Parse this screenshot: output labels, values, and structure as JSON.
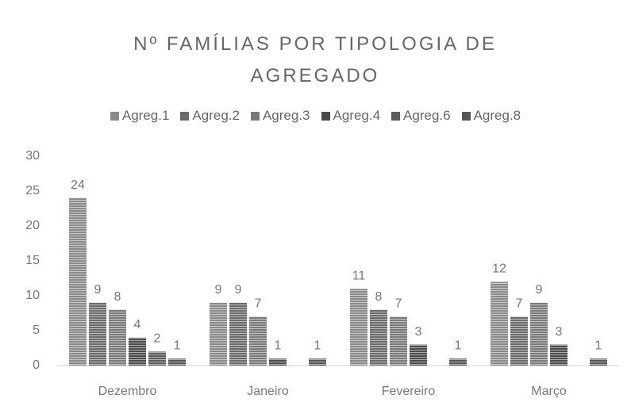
{
  "chart_data": {
    "type": "bar",
    "title": "Nº FAMÍLIAS POR TIPOLOGIA DE AGREGADO",
    "categories": [
      "Dezembro",
      "Janeiro",
      "Fevereiro",
      "Março"
    ],
    "series": [
      {
        "name": "Agreg.1",
        "color": "#8a8a8a",
        "values": [
          24,
          9,
          11,
          12
        ]
      },
      {
        "name": "Agreg.2",
        "color": "#6a6a6a",
        "values": [
          9,
          9,
          8,
          7
        ]
      },
      {
        "name": "Agreg.3",
        "color": "#7a7a7a",
        "values": [
          8,
          7,
          7,
          9
        ]
      },
      {
        "name": "Agreg.4",
        "color": "#4a4a4a",
        "values": [
          4,
          1,
          3,
          3
        ]
      },
      {
        "name": "Agreg.6",
        "color": "#5a5a5a",
        "values": [
          2,
          null,
          null,
          null
        ]
      },
      {
        "name": "Agreg.8",
        "color": "#555555",
        "values": [
          1,
          1,
          1,
          1
        ]
      }
    ],
    "ylim": [
      0,
      30
    ],
    "yticks": [
      0,
      5,
      10,
      15,
      20,
      25,
      30
    ],
    "grid": false,
    "legend": "top"
  }
}
